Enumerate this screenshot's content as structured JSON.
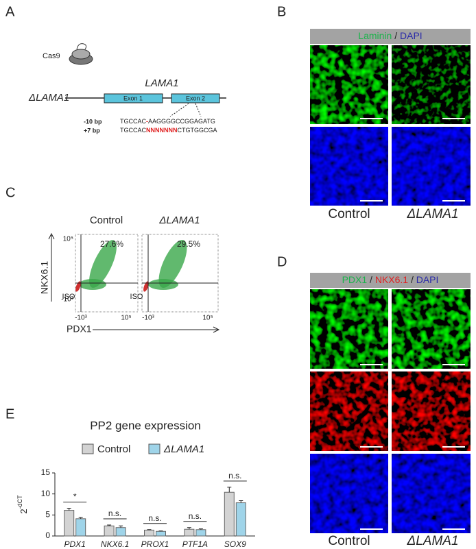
{
  "panels": {
    "A": {
      "label": "A",
      "enzyme": "Cas9",
      "gene": "LAMA1",
      "allele": "ΔLAMA1",
      "exon1": "Exon 1",
      "exon2": "Exon 2",
      "del_label": "-10 bp",
      "del_left": "TGCCAC",
      "del_mark": "-",
      "del_right": "AAGGGGCCGGAGATG",
      "ins_label": "+7 bp",
      "ins_left": "TGCCAC",
      "ins_mark": "NNNNNNN",
      "ins_right": "CTGTGGCGA"
    },
    "B": {
      "label": "B",
      "stain1": "Laminin",
      "sep": "/",
      "stain2": "DAPI",
      "col1": "Control",
      "col2": "ΔLAMA1"
    },
    "C": {
      "label": "C",
      "col1": "Control",
      "col2": "ΔLAMA1",
      "pct1": "27.6%",
      "pct2": "29.5%",
      "iso": "ISO",
      "ylabel": "NKX6.1",
      "xlabel": "PDX1",
      "tick_high": "10⁵",
      "tick_low": "-10³"
    },
    "D": {
      "label": "D",
      "stain1": "PDX1",
      "sep": "/",
      "stain2": "NKX6.1",
      "stain3": "DAPI",
      "col1": "Control",
      "col2": "ΔLAMA1"
    },
    "E": {
      "label": "E"
    }
  },
  "chart_data": {
    "type": "bar",
    "title": "PP2 gene expression",
    "ylabel": "2",
    "ylabel_exponent": "-dCT",
    "categories": [
      "PDX1",
      "NKX6.1",
      "PROX1",
      "PTF1A",
      "SOX9"
    ],
    "series": [
      {
        "name": "Control",
        "color": "#d3d3d3",
        "values": [
          6.1,
          2.4,
          1.4,
          1.6,
          10.4
        ],
        "errors": [
          0.5,
          0.2,
          0.1,
          0.4,
          1.2
        ]
      },
      {
        "name": "ΔLAMA1",
        "color": "#9fd4e9",
        "values": [
          4.1,
          2.0,
          1.1,
          1.5,
          7.9
        ],
        "errors": [
          0.3,
          0.4,
          0.1,
          0.2,
          0.5
        ]
      }
    ],
    "significance": [
      "*",
      "n.s.",
      "n.s.",
      "n.s.",
      "n.s."
    ],
    "ylim": [
      0,
      15
    ],
    "yticks": [
      0,
      5,
      10,
      15
    ]
  }
}
